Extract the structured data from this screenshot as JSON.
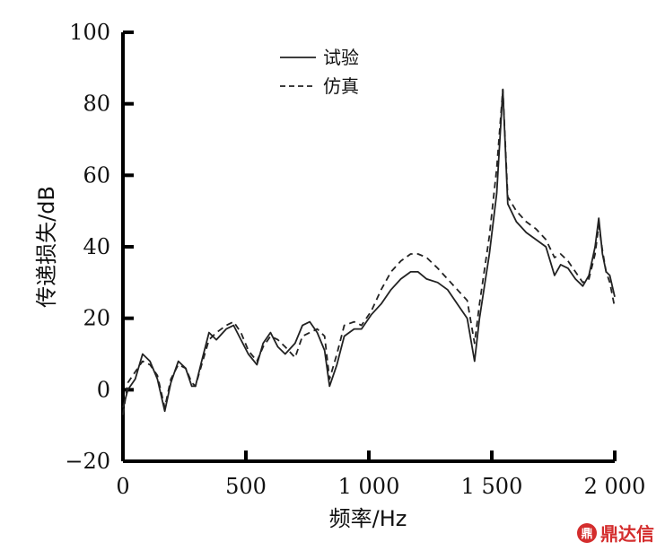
{
  "chart_data": {
    "type": "line",
    "xlabel": "频率/Hz",
    "ylabel": "传递损失/dB",
    "xlim": [
      0,
      2000
    ],
    "ylim": [
      -20,
      100
    ],
    "x_ticks": [
      0,
      500,
      1000,
      1500,
      2000
    ],
    "x_tick_labels": [
      "0",
      "500",
      "1 000",
      "1 500",
      "2 000"
    ],
    "y_ticks": [
      -20,
      0,
      20,
      40,
      60,
      80,
      100
    ],
    "y_tick_labels": [
      "−20",
      "0",
      "20",
      "40",
      "60",
      "80",
      "100"
    ],
    "legend_position": "top-center",
    "series": [
      {
        "name": "试验",
        "style": "solid",
        "color": "#222222",
        "points": [
          [
            0,
            -5
          ],
          [
            20,
            0
          ],
          [
            50,
            3
          ],
          [
            80,
            10
          ],
          [
            110,
            8
          ],
          [
            140,
            3
          ],
          [
            170,
            -6
          ],
          [
            195,
            2
          ],
          [
            225,
            8
          ],
          [
            255,
            6
          ],
          [
            280,
            1
          ],
          [
            295,
            1
          ],
          [
            320,
            8
          ],
          [
            350,
            16
          ],
          [
            380,
            14
          ],
          [
            420,
            17
          ],
          [
            450,
            18
          ],
          [
            480,
            14
          ],
          [
            510,
            10
          ],
          [
            545,
            7
          ],
          [
            570,
            13
          ],
          [
            600,
            16
          ],
          [
            630,
            12
          ],
          [
            660,
            10
          ],
          [
            700,
            13
          ],
          [
            730,
            18
          ],
          [
            760,
            19
          ],
          [
            790,
            16
          ],
          [
            820,
            11
          ],
          [
            840,
            1
          ],
          [
            870,
            7
          ],
          [
            900,
            15
          ],
          [
            940,
            17
          ],
          [
            970,
            17
          ],
          [
            1010,
            21
          ],
          [
            1050,
            24
          ],
          [
            1090,
            28
          ],
          [
            1130,
            31
          ],
          [
            1170,
            33
          ],
          [
            1200,
            33
          ],
          [
            1235,
            31
          ],
          [
            1280,
            30
          ],
          [
            1320,
            28
          ],
          [
            1360,
            24
          ],
          [
            1400,
            20
          ],
          [
            1430,
            8
          ],
          [
            1450,
            20
          ],
          [
            1490,
            38
          ],
          [
            1520,
            55
          ],
          [
            1545,
            84
          ],
          [
            1565,
            52
          ],
          [
            1600,
            47
          ],
          [
            1640,
            44
          ],
          [
            1680,
            42
          ],
          [
            1720,
            40
          ],
          [
            1755,
            32
          ],
          [
            1780,
            35
          ],
          [
            1810,
            34
          ],
          [
            1840,
            31
          ],
          [
            1870,
            29
          ],
          [
            1895,
            32
          ],
          [
            1920,
            40
          ],
          [
            1935,
            48
          ],
          [
            1950,
            38
          ],
          [
            1965,
            33
          ],
          [
            1980,
            32
          ],
          [
            2000,
            26
          ]
        ]
      },
      {
        "name": "仿真",
        "style": "dashed",
        "color": "#222222",
        "points": [
          [
            0,
            -7
          ],
          [
            20,
            2
          ],
          [
            50,
            5
          ],
          [
            80,
            8
          ],
          [
            110,
            7
          ],
          [
            140,
            4
          ],
          [
            170,
            -5
          ],
          [
            195,
            3
          ],
          [
            225,
            7
          ],
          [
            255,
            6
          ],
          [
            280,
            2
          ],
          [
            295,
            1
          ],
          [
            320,
            7
          ],
          [
            350,
            14
          ],
          [
            380,
            16
          ],
          [
            420,
            18
          ],
          [
            450,
            19
          ],
          [
            480,
            16
          ],
          [
            510,
            11
          ],
          [
            545,
            8
          ],
          [
            570,
            12
          ],
          [
            600,
            15
          ],
          [
            630,
            14
          ],
          [
            660,
            12
          ],
          [
            700,
            9
          ],
          [
            730,
            15
          ],
          [
            760,
            16
          ],
          [
            790,
            17
          ],
          [
            820,
            15
          ],
          [
            840,
            3
          ],
          [
            870,
            10
          ],
          [
            900,
            18
          ],
          [
            940,
            19
          ],
          [
            970,
            18
          ],
          [
            1010,
            22
          ],
          [
            1050,
            28
          ],
          [
            1090,
            33
          ],
          [
            1130,
            36
          ],
          [
            1170,
            38
          ],
          [
            1200,
            38
          ],
          [
            1235,
            37
          ],
          [
            1280,
            34
          ],
          [
            1320,
            31
          ],
          [
            1360,
            28
          ],
          [
            1400,
            25
          ],
          [
            1430,
            13
          ],
          [
            1450,
            24
          ],
          [
            1490,
            43
          ],
          [
            1520,
            62
          ],
          [
            1545,
            84
          ],
          [
            1565,
            54
          ],
          [
            1600,
            50
          ],
          [
            1640,
            47
          ],
          [
            1680,
            45
          ],
          [
            1720,
            42
          ],
          [
            1755,
            37
          ],
          [
            1780,
            38
          ],
          [
            1810,
            36
          ],
          [
            1840,
            33
          ],
          [
            1870,
            30
          ],
          [
            1895,
            31
          ],
          [
            1920,
            38
          ],
          [
            1935,
            46
          ],
          [
            1950,
            39
          ],
          [
            1965,
            33
          ],
          [
            1980,
            30
          ],
          [
            2000,
            23
          ]
        ]
      }
    ]
  },
  "watermark": {
    "icon_label": "鼎",
    "text": "鼎达信"
  }
}
